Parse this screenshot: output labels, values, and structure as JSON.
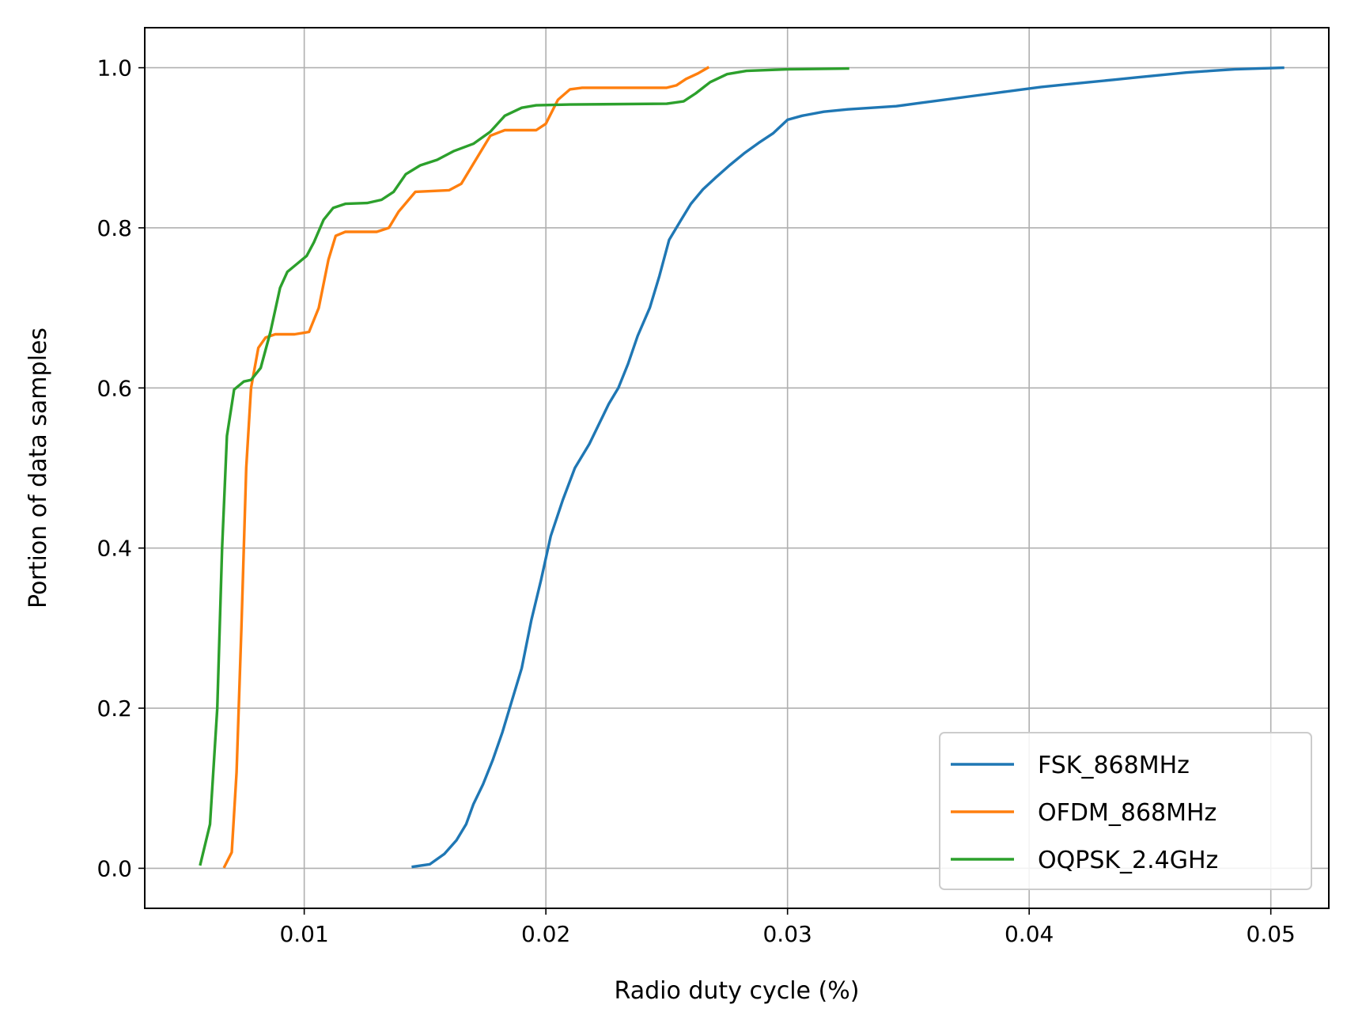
{
  "chart_data": {
    "type": "line",
    "title": "",
    "xlabel": "Radio duty cycle (%)",
    "ylabel": "Portion of data samples",
    "xlim": [
      0.0034,
      0.0524
    ],
    "ylim": [
      -0.05,
      1.05
    ],
    "xticks": [
      {
        "value": 0.01,
        "label": "0.01"
      },
      {
        "value": 0.02,
        "label": "0.02"
      },
      {
        "value": 0.03,
        "label": "0.03"
      },
      {
        "value": 0.04,
        "label": "0.04"
      },
      {
        "value": 0.05,
        "label": "0.05"
      }
    ],
    "yticks": [
      {
        "value": 0.0,
        "label": "0.0"
      },
      {
        "value": 0.2,
        "label": "0.2"
      },
      {
        "value": 0.4,
        "label": "0.4"
      },
      {
        "value": 0.6,
        "label": "0.6"
      },
      {
        "value": 0.8,
        "label": "0.8"
      },
      {
        "value": 1.0,
        "label": "1.0"
      }
    ],
    "grid": true,
    "legend": {
      "placement": "bottom-right"
    },
    "series": [
      {
        "name": "FSK_868MHz",
        "color": "#1f77b4",
        "points": [
          [
            0.0145,
            0.002
          ],
          [
            0.0152,
            0.005
          ],
          [
            0.0158,
            0.018
          ],
          [
            0.0163,
            0.035
          ],
          [
            0.0167,
            0.055
          ],
          [
            0.017,
            0.08
          ],
          [
            0.0174,
            0.105
          ],
          [
            0.0178,
            0.135
          ],
          [
            0.0182,
            0.17
          ],
          [
            0.0186,
            0.21
          ],
          [
            0.019,
            0.25
          ],
          [
            0.0194,
            0.31
          ],
          [
            0.0198,
            0.36
          ],
          [
            0.0202,
            0.415
          ],
          [
            0.0207,
            0.46
          ],
          [
            0.0212,
            0.5
          ],
          [
            0.0218,
            0.53
          ],
          [
            0.0222,
            0.555
          ],
          [
            0.0226,
            0.58
          ],
          [
            0.023,
            0.6
          ],
          [
            0.0234,
            0.63
          ],
          [
            0.0238,
            0.665
          ],
          [
            0.0243,
            0.7
          ],
          [
            0.0247,
            0.74
          ],
          [
            0.0251,
            0.785
          ],
          [
            0.0256,
            0.81
          ],
          [
            0.026,
            0.83
          ],
          [
            0.0265,
            0.848
          ],
          [
            0.027,
            0.862
          ],
          [
            0.0276,
            0.878
          ],
          [
            0.0282,
            0.893
          ],
          [
            0.0288,
            0.906
          ],
          [
            0.0294,
            0.918
          ],
          [
            0.03,
            0.935
          ],
          [
            0.0306,
            0.94
          ],
          [
            0.0315,
            0.945
          ],
          [
            0.0325,
            0.948
          ],
          [
            0.0335,
            0.95
          ],
          [
            0.0345,
            0.952
          ],
          [
            0.0355,
            0.956
          ],
          [
            0.0365,
            0.96
          ],
          [
            0.0375,
            0.964
          ],
          [
            0.0385,
            0.968
          ],
          [
            0.0395,
            0.972
          ],
          [
            0.0405,
            0.976
          ],
          [
            0.0415,
            0.979
          ],
          [
            0.0425,
            0.982
          ],
          [
            0.0435,
            0.985
          ],
          [
            0.0445,
            0.988
          ],
          [
            0.0455,
            0.991
          ],
          [
            0.0465,
            0.994
          ],
          [
            0.0475,
            0.996
          ],
          [
            0.0485,
            0.998
          ],
          [
            0.0495,
            0.999
          ],
          [
            0.0505,
            1.0
          ]
        ]
      },
      {
        "name": "OFDM_868MHz",
        "color": "#ff7f0e",
        "points": [
          [
            0.0067,
            0.002
          ],
          [
            0.007,
            0.02
          ],
          [
            0.0072,
            0.12
          ],
          [
            0.0074,
            0.3
          ],
          [
            0.0076,
            0.5
          ],
          [
            0.0078,
            0.6
          ],
          [
            0.0081,
            0.65
          ],
          [
            0.0084,
            0.663
          ],
          [
            0.0088,
            0.667
          ],
          [
            0.0096,
            0.667
          ],
          [
            0.0102,
            0.67
          ],
          [
            0.0106,
            0.7
          ],
          [
            0.011,
            0.76
          ],
          [
            0.0113,
            0.79
          ],
          [
            0.0117,
            0.795
          ],
          [
            0.013,
            0.795
          ],
          [
            0.0135,
            0.8
          ],
          [
            0.0139,
            0.82
          ],
          [
            0.0146,
            0.845
          ],
          [
            0.016,
            0.847
          ],
          [
            0.0165,
            0.855
          ],
          [
            0.0172,
            0.89
          ],
          [
            0.0177,
            0.915
          ],
          [
            0.0183,
            0.922
          ],
          [
            0.0196,
            0.922
          ],
          [
            0.02,
            0.93
          ],
          [
            0.0205,
            0.96
          ],
          [
            0.021,
            0.973
          ],
          [
            0.0215,
            0.975
          ],
          [
            0.025,
            0.975
          ],
          [
            0.0254,
            0.978
          ],
          [
            0.0258,
            0.986
          ],
          [
            0.0263,
            0.993
          ],
          [
            0.0267,
            1.0
          ]
        ]
      },
      {
        "name": "OQPSK_2.4GHz",
        "color": "#2ca02c",
        "points": [
          [
            0.0057,
            0.005
          ],
          [
            0.0061,
            0.055
          ],
          [
            0.0064,
            0.2
          ],
          [
            0.0066,
            0.4
          ],
          [
            0.0068,
            0.54
          ],
          [
            0.0071,
            0.598
          ],
          [
            0.0075,
            0.608
          ],
          [
            0.0078,
            0.61
          ],
          [
            0.0082,
            0.625
          ],
          [
            0.0086,
            0.67
          ],
          [
            0.009,
            0.725
          ],
          [
            0.0093,
            0.745
          ],
          [
            0.0097,
            0.755
          ],
          [
            0.0101,
            0.765
          ],
          [
            0.0104,
            0.782
          ],
          [
            0.0108,
            0.81
          ],
          [
            0.0112,
            0.825
          ],
          [
            0.0117,
            0.83
          ],
          [
            0.0126,
            0.831
          ],
          [
            0.0132,
            0.835
          ],
          [
            0.0137,
            0.845
          ],
          [
            0.0142,
            0.867
          ],
          [
            0.0148,
            0.878
          ],
          [
            0.0155,
            0.885
          ],
          [
            0.0162,
            0.896
          ],
          [
            0.017,
            0.905
          ],
          [
            0.0177,
            0.92
          ],
          [
            0.0183,
            0.94
          ],
          [
            0.019,
            0.95
          ],
          [
            0.0196,
            0.953
          ],
          [
            0.021,
            0.954
          ],
          [
            0.025,
            0.955
          ],
          [
            0.0257,
            0.958
          ],
          [
            0.0262,
            0.968
          ],
          [
            0.0268,
            0.982
          ],
          [
            0.0275,
            0.992
          ],
          [
            0.0283,
            0.996
          ],
          [
            0.03,
            0.998
          ],
          [
            0.0325,
            0.999
          ]
        ]
      }
    ]
  }
}
